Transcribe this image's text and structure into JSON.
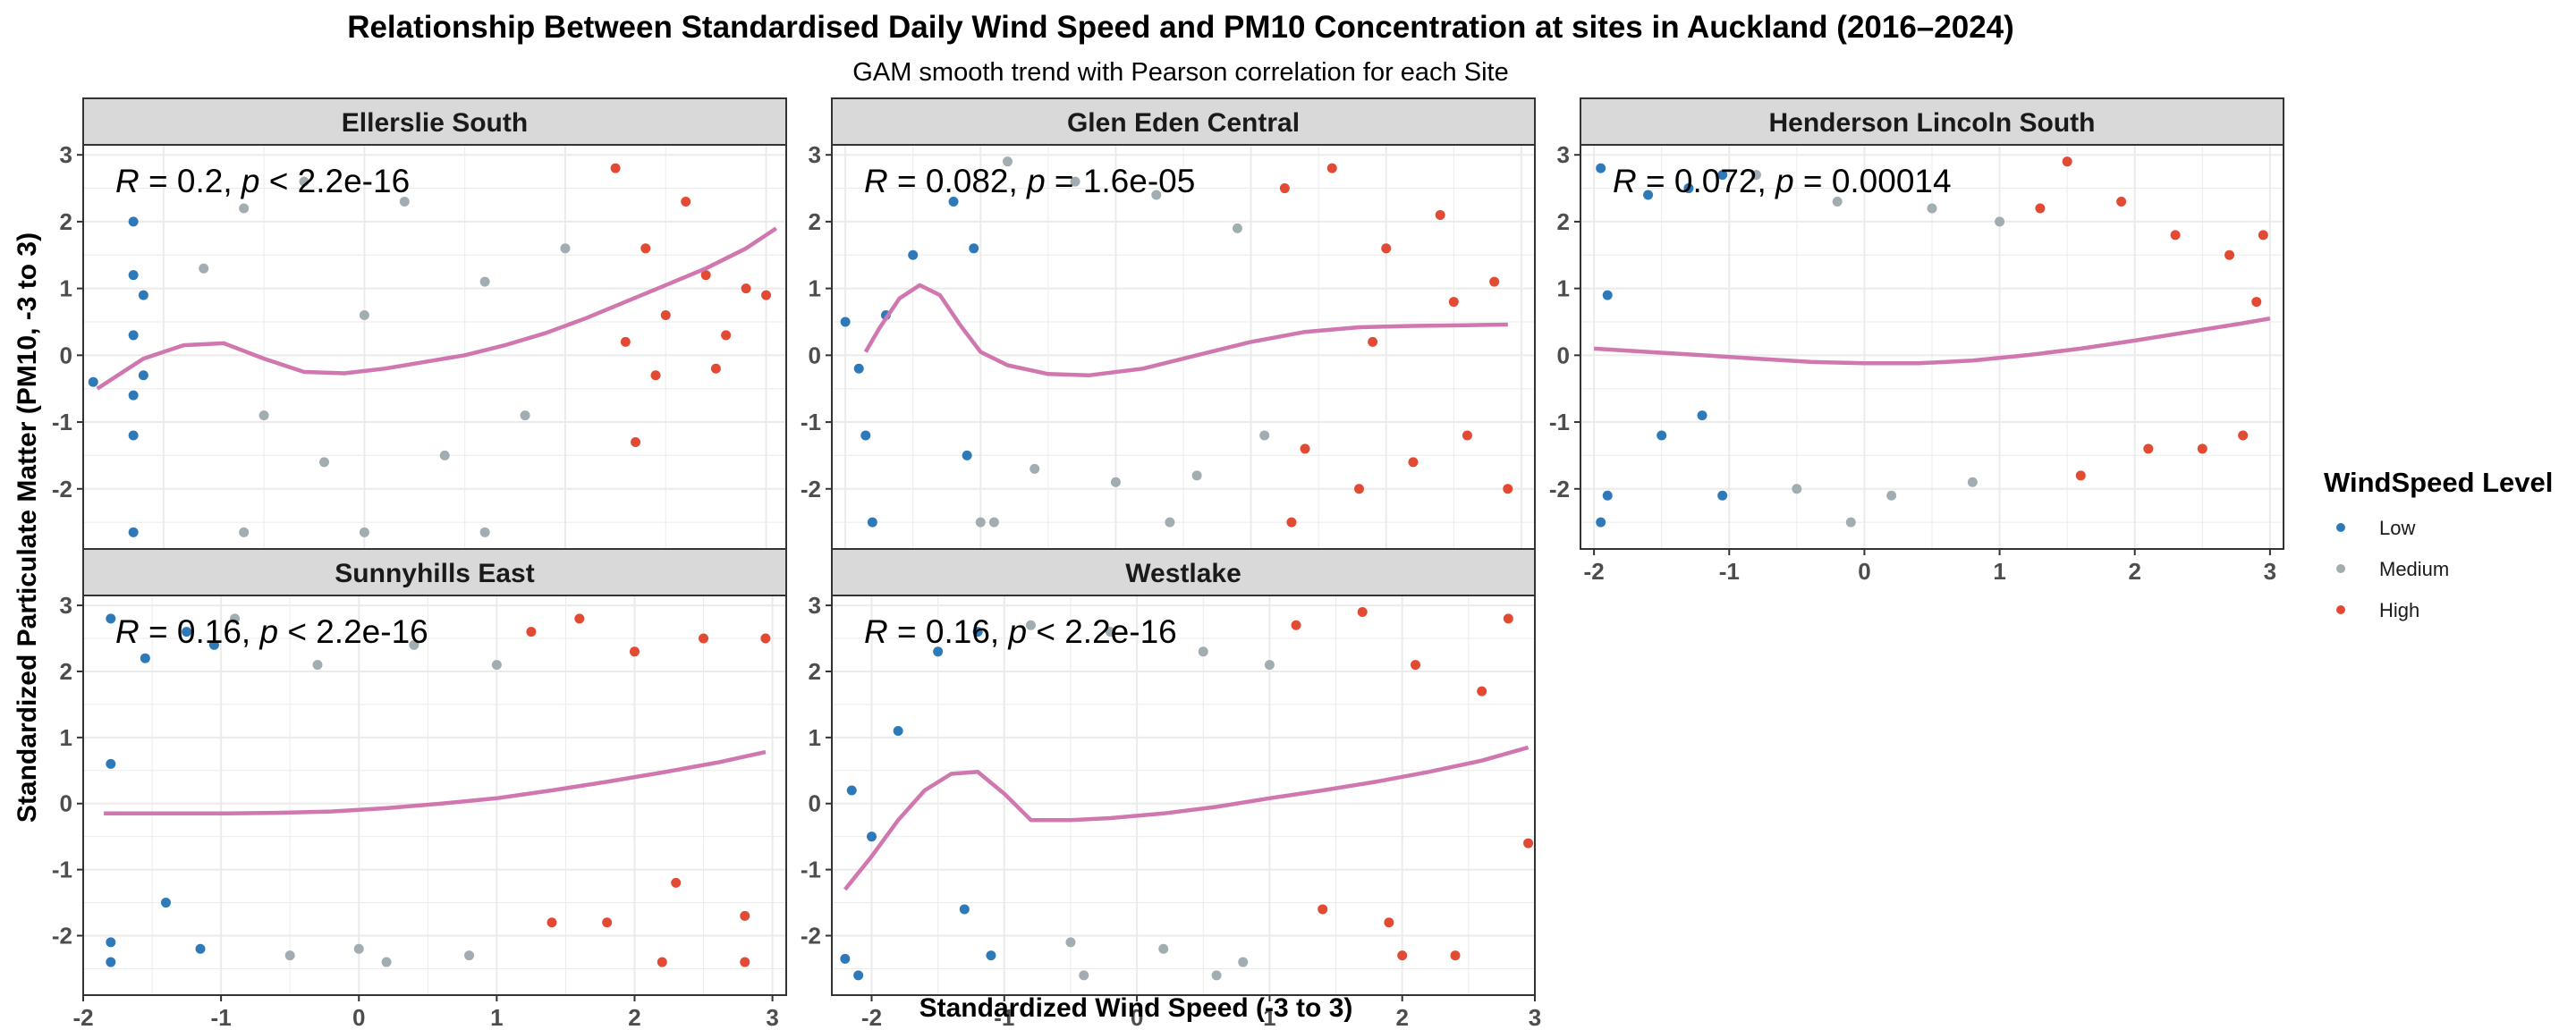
{
  "title": "Relationship Between Standardised Daily Wind Speed and PM10 Concentration at sites in Auckland (2016–2024)",
  "subtitle": "GAM smooth trend with Pearson correlation for each Site",
  "colors": {
    "low": "#2e7ab8",
    "medium": "#a1adb1",
    "high": "#e34a33",
    "smooth": "#cf77ae",
    "strip_bg": "#d9d9d9",
    "grid": "#ebebeb"
  },
  "legend": {
    "title": "WindSpeed Level",
    "items": [
      {
        "label": "Low",
        "color": "#2e7ab8"
      },
      {
        "label": "Medium",
        "color": "#a1adb1"
      },
      {
        "label": "High",
        "color": "#e34a33"
      }
    ]
  },
  "chart_data": {
    "type": "scatter",
    "xlabel": "Standardized Wind Speed (-3 to 3)",
    "ylabel": "Standardized Particulate Matter (PM10, -3 to 3)",
    "ylim": [
      -3,
      3
    ],
    "y_ticks": [
      -2,
      -1,
      0,
      1,
      2,
      3
    ],
    "grid": true,
    "legend_position": "right",
    "panels": [
      {
        "site": "Ellerslie South",
        "stat": {
          "r": "0.2",
          "p": "< 2.2e-16"
        },
        "xlim": [
          -1.4,
          2.1
        ],
        "x_ticks": [
          -1,
          0,
          1,
          2
        ],
        "level_breaks": [
          -1.05,
          1.2
        ],
        "smooth": {
          "x": [
            -1.33,
            -1.1,
            -0.9,
            -0.7,
            -0.5,
            -0.3,
            -0.1,
            0.1,
            0.3,
            0.5,
            0.7,
            0.9,
            1.1,
            1.3,
            1.5,
            1.7,
            1.9,
            2.05
          ],
          "y": [
            -0.5,
            -0.05,
            0.15,
            0.18,
            -0.05,
            -0.25,
            -0.27,
            -0.2,
            -0.1,
            0.0,
            0.15,
            0.33,
            0.55,
            0.8,
            1.05,
            1.3,
            1.6,
            1.9
          ]
        },
        "points": [
          [
            -1.15,
            2.0
          ],
          [
            -1.15,
            1.2
          ],
          [
            -1.15,
            0.3
          ],
          [
            -1.15,
            -0.6
          ],
          [
            -1.15,
            -1.2
          ],
          [
            -1.15,
            -2.65
          ],
          [
            -1.1,
            0.9
          ],
          [
            -1.1,
            -0.3
          ],
          [
            -1.35,
            -0.4
          ],
          [
            -0.8,
            1.3
          ],
          [
            -0.6,
            2.2
          ],
          [
            -0.5,
            -0.9
          ],
          [
            -0.3,
            2.6
          ],
          [
            -0.2,
            -1.6
          ],
          [
            0.0,
            0.6
          ],
          [
            0.2,
            2.3
          ],
          [
            0.4,
            -1.5
          ],
          [
            0.6,
            1.1
          ],
          [
            0.8,
            -0.9
          ],
          [
            1.0,
            1.6
          ],
          [
            -0.6,
            -2.65
          ],
          [
            0.0,
            -2.65
          ],
          [
            0.6,
            -2.65
          ],
          [
            1.25,
            2.8
          ],
          [
            1.4,
            1.6
          ],
          [
            1.5,
            0.6
          ],
          [
            1.6,
            2.3
          ],
          [
            1.7,
            1.2
          ],
          [
            1.8,
            0.3
          ],
          [
            1.9,
            1.0
          ],
          [
            2.0,
            0.9
          ],
          [
            1.35,
            -1.3
          ],
          [
            1.45,
            -0.3
          ],
          [
            1.3,
            0.2
          ],
          [
            1.75,
            -0.2
          ]
        ]
      },
      {
        "site": "Glen Eden Central",
        "stat": {
          "r": "0.082",
          "p": "1.6e-05"
        },
        "xlim": [
          -2.1,
          3.1
        ],
        "x_ticks": [
          -2,
          -1,
          0,
          1,
          2,
          3
        ],
        "level_breaks": [
          -1.0,
          1.2
        ],
        "smooth": {
          "x": [
            -1.85,
            -1.75,
            -1.6,
            -1.45,
            -1.3,
            -1.15,
            -1.0,
            -0.8,
            -0.5,
            -0.2,
            0.2,
            0.6,
            1.0,
            1.4,
            1.8,
            2.2,
            2.6,
            2.9
          ],
          "y": [
            0.05,
            0.4,
            0.85,
            1.05,
            0.9,
            0.45,
            0.05,
            -0.15,
            -0.28,
            -0.3,
            -0.2,
            0.0,
            0.2,
            0.35,
            0.42,
            0.44,
            0.45,
            0.46
          ]
        },
        "points": [
          [
            -2.0,
            0.5
          ],
          [
            -1.9,
            -0.2
          ],
          [
            -1.85,
            -1.2
          ],
          [
            -1.8,
            -2.5
          ],
          [
            -1.7,
            0.6
          ],
          [
            -1.5,
            1.5
          ],
          [
            -1.2,
            2.3
          ],
          [
            -1.1,
            -1.5
          ],
          [
            -1.05,
            1.6
          ],
          [
            -1.0,
            -2.5
          ],
          [
            -0.8,
            2.9
          ],
          [
            -0.6,
            -1.7
          ],
          [
            -0.3,
            2.6
          ],
          [
            0.0,
            -1.9
          ],
          [
            0.3,
            2.4
          ],
          [
            0.6,
            -1.8
          ],
          [
            0.9,
            1.9
          ],
          [
            1.1,
            -1.2
          ],
          [
            -0.9,
            -2.5
          ],
          [
            0.4,
            -2.5
          ],
          [
            1.25,
            2.5
          ],
          [
            1.4,
            -1.4
          ],
          [
            1.6,
            2.8
          ],
          [
            1.8,
            -2.0
          ],
          [
            2.0,
            1.6
          ],
          [
            2.2,
            -1.6
          ],
          [
            2.4,
            2.1
          ],
          [
            2.6,
            -1.2
          ],
          [
            2.8,
            1.1
          ],
          [
            2.9,
            -2.0
          ],
          [
            1.3,
            -2.5
          ],
          [
            2.5,
            0.8
          ],
          [
            1.9,
            0.2
          ]
        ]
      },
      {
        "site": "Henderson Lincoln South",
        "stat": {
          "r": "0.072",
          "p": "0.00014"
        },
        "xlim": [
          -2.1,
          3.1
        ],
        "x_ticks": [
          -2,
          -1,
          0,
          1,
          2,
          3
        ],
        "level_breaks": [
          -1.0,
          1.2
        ],
        "smooth": {
          "x": [
            -2.0,
            -1.6,
            -1.2,
            -0.8,
            -0.4,
            0.0,
            0.4,
            0.8,
            1.2,
            1.6,
            2.0,
            2.4,
            2.8,
            3.0
          ],
          "y": [
            0.1,
            0.05,
            0.0,
            -0.05,
            -0.1,
            -0.12,
            -0.12,
            -0.08,
            0.0,
            0.1,
            0.22,
            0.35,
            0.48,
            0.55
          ]
        },
        "points": [
          [
            -1.95,
            2.8
          ],
          [
            -1.9,
            -2.1
          ],
          [
            -1.95,
            -2.5
          ],
          [
            -1.9,
            0.9
          ],
          [
            -1.6,
            2.4
          ],
          [
            -1.5,
            -1.2
          ],
          [
            -1.3,
            2.5
          ],
          [
            -1.2,
            -0.9
          ],
          [
            -1.05,
            2.7
          ],
          [
            -1.05,
            -2.1
          ],
          [
            -0.8,
            2.7
          ],
          [
            -0.5,
            -2.0
          ],
          [
            -0.2,
            2.3
          ],
          [
            0.2,
            -2.1
          ],
          [
            0.5,
            2.2
          ],
          [
            0.8,
            -1.9
          ],
          [
            1.0,
            2.0
          ],
          [
            -0.1,
            -2.5
          ],
          [
            1.3,
            2.2
          ],
          [
            1.5,
            2.9
          ],
          [
            1.6,
            -1.8
          ],
          [
            1.9,
            2.3
          ],
          [
            2.1,
            -1.4
          ],
          [
            2.3,
            1.8
          ],
          [
            2.5,
            -1.4
          ],
          [
            2.7,
            1.5
          ],
          [
            2.9,
            0.8
          ],
          [
            2.95,
            1.8
          ],
          [
            2.8,
            -1.2
          ]
        ]
      },
      {
        "site": "Sunnyhills East",
        "stat": {
          "r": "0.16",
          "p": "< 2.2e-16"
        },
        "xlim": [
          -2.0,
          3.1
        ],
        "x_ticks": [
          -2,
          -1,
          0,
          1,
          2,
          3
        ],
        "level_breaks": [
          -1.0,
          1.2
        ],
        "smooth": {
          "x": [
            -1.85,
            -1.4,
            -1.0,
            -0.6,
            -0.2,
            0.2,
            0.6,
            1.0,
            1.4,
            1.8,
            2.2,
            2.6,
            2.95
          ],
          "y": [
            -0.15,
            -0.15,
            -0.15,
            -0.14,
            -0.12,
            -0.07,
            0.0,
            0.08,
            0.2,
            0.33,
            0.47,
            0.62,
            0.78
          ]
        },
        "points": [
          [
            -1.8,
            2.8
          ],
          [
            -1.8,
            -2.1
          ],
          [
            -1.8,
            -2.4
          ],
          [
            -1.8,
            0.6
          ],
          [
            -1.55,
            2.2
          ],
          [
            -1.4,
            -1.5
          ],
          [
            -1.25,
            2.6
          ],
          [
            -1.15,
            -2.2
          ],
          [
            -1.05,
            2.4
          ],
          [
            -0.9,
            2.8
          ],
          [
            -0.5,
            -2.3
          ],
          [
            -0.3,
            2.1
          ],
          [
            0.0,
            -2.2
          ],
          [
            0.4,
            2.4
          ],
          [
            0.8,
            -2.3
          ],
          [
            1.0,
            2.1
          ],
          [
            0.2,
            -2.4
          ],
          [
            1.25,
            2.6
          ],
          [
            1.4,
            -1.8
          ],
          [
            1.6,
            2.8
          ],
          [
            1.8,
            -1.8
          ],
          [
            2.0,
            2.3
          ],
          [
            2.3,
            -1.2
          ],
          [
            2.5,
            2.5
          ],
          [
            2.8,
            -1.7
          ],
          [
            2.8,
            -2.4
          ],
          [
            2.95,
            2.5
          ],
          [
            2.2,
            -2.4
          ]
        ]
      },
      {
        "site": "Westlake",
        "stat": {
          "r": "0.16",
          "p": "< 2.2e-16"
        },
        "xlim": [
          -2.3,
          3.0
        ],
        "x_ticks": [
          -2,
          -1,
          0,
          1,
          2,
          3
        ],
        "level_breaks": [
          -1.0,
          1.15
        ],
        "smooth": {
          "x": [
            -2.2,
            -2.0,
            -1.8,
            -1.6,
            -1.4,
            -1.2,
            -1.0,
            -0.8,
            -0.5,
            -0.2,
            0.2,
            0.6,
            1.0,
            1.4,
            1.8,
            2.2,
            2.6,
            2.95
          ],
          "y": [
            -1.3,
            -0.8,
            -0.25,
            0.2,
            0.45,
            0.48,
            0.15,
            -0.25,
            -0.25,
            -0.22,
            -0.15,
            -0.05,
            0.08,
            0.2,
            0.33,
            0.48,
            0.65,
            0.85
          ]
        },
        "points": [
          [
            -2.2,
            -2.35
          ],
          [
            -2.15,
            0.2
          ],
          [
            -2.1,
            -2.6
          ],
          [
            -2.0,
            -0.5
          ],
          [
            -1.8,
            1.1
          ],
          [
            -1.5,
            2.3
          ],
          [
            -1.3,
            -1.6
          ],
          [
            -1.2,
            2.6
          ],
          [
            -1.1,
            -2.3
          ],
          [
            -0.8,
            2.7
          ],
          [
            -0.5,
            -2.1
          ],
          [
            -0.2,
            2.6
          ],
          [
            0.2,
            -2.2
          ],
          [
            0.5,
            2.3
          ],
          [
            0.8,
            -2.4
          ],
          [
            1.0,
            2.1
          ],
          [
            -0.4,
            -2.6
          ],
          [
            0.6,
            -2.6
          ],
          [
            1.2,
            2.7
          ],
          [
            1.4,
            -1.6
          ],
          [
            1.7,
            2.9
          ],
          [
            1.9,
            -1.8
          ],
          [
            2.1,
            2.1
          ],
          [
            2.4,
            -2.3
          ],
          [
            2.6,
            1.7
          ],
          [
            2.8,
            2.8
          ],
          [
            2.95,
            -0.6
          ],
          [
            2.0,
            -2.3
          ]
        ]
      }
    ]
  }
}
